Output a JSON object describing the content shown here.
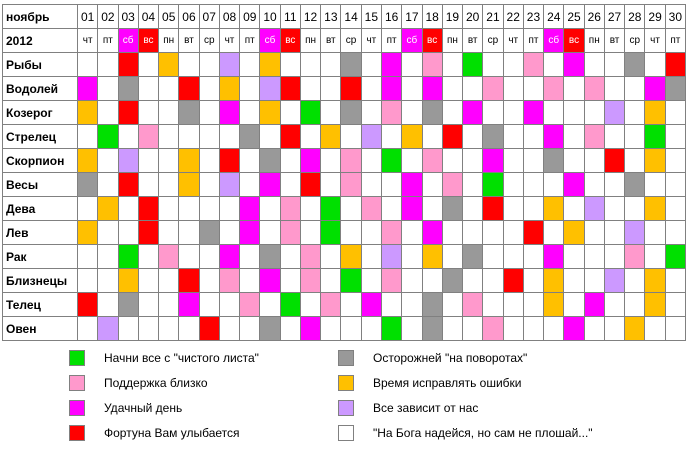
{
  "header": {
    "month": "ноябрь",
    "year": "2012",
    "days": [
      "01",
      "02",
      "03",
      "04",
      "05",
      "06",
      "07",
      "08",
      "09",
      "10",
      "11",
      "12",
      "13",
      "14",
      "15",
      "16",
      "17",
      "18",
      "19",
      "20",
      "21",
      "22",
      "23",
      "24",
      "25",
      "26",
      "27",
      "28",
      "29",
      "30"
    ],
    "weekdays": [
      "чт",
      "пт",
      "сб",
      "вс",
      "пн",
      "вт",
      "ср",
      "чт",
      "пт",
      "сб",
      "вс",
      "пн",
      "вт",
      "ср",
      "чт",
      "пт",
      "сб",
      "вс",
      "пн",
      "вт",
      "ср",
      "чт",
      "пт",
      "сб",
      "вс",
      "пн",
      "вт",
      "ср",
      "чт",
      "пт"
    ]
  },
  "colors": {
    "G": "#00e000",
    "P": "#ff99cc",
    "M": "#ff00ff",
    "R": "#ff0000",
    "D": "#999999",
    "Y": "#ffc000",
    "L": "#cc99ff",
    "W": "#ffffff",
    "sat": "#ff00ff",
    "sun": "#ff0000"
  },
  "signs": [
    {
      "name": "Рыбы",
      "cells": "WWRWYWWLWYWWWDWMWPWGWWPWMWWDWR"
    },
    {
      "name": "Водолей",
      "cells": "MWDWWRWYWLRWWRWMWMWWPWWPWPWWMD"
    },
    {
      "name": "Козерог",
      "cells": "YWRWWDWMWYWGWDWPWDWMWWMWWWLWYW"
    },
    {
      "name": "Стрелец",
      "cells": "WGWPWWWWDWRWYWLWYWRWDWWMWPWWGW"
    },
    {
      "name": "Скорпион",
      "cells": "YWLWWYWRWDWMWPWGWPWWMWWDWWRWYW"
    },
    {
      "name": "Весы",
      "cells": "DWRWWYWLWMWRWPWWMWPWGWWWMWWDWW"
    },
    {
      "name": "Дева",
      "cells": "WYWRWWWWMWPWGWPWMWDWRWWYWLWWYW"
    },
    {
      "name": "Лев",
      "cells": "YWWRWWDWMWPWGWWPWMWWWWRWYWWLWW"
    },
    {
      "name": "Рак",
      "cells": "WWGWPWWMWDWPWYWLWYWDWWWMWWWPWG"
    },
    {
      "name": "Близнецы",
      "cells": "WWYWWRWPWMWPWGWPWWDWWRWYWWLWYW"
    },
    {
      "name": "Телец",
      "cells": "RWDWWMWWPWGWPWMWWDWPWWWYWMWWYW"
    },
    {
      "name": "Овен",
      "cells": "WLWWWWRWWDWMWWWGWDWWPWWWMWWYWW"
    }
  ],
  "legend": [
    {
      "color": "G",
      "text": "Начни все с \"чистого листа\""
    },
    {
      "color": "P",
      "text": "Поддержка близко"
    },
    {
      "color": "M",
      "text": "Удачный день"
    },
    {
      "color": "R",
      "text": "Фортуна Вам улыбается"
    },
    {
      "color": "D",
      "text": "Осторожней \"на поворотах\""
    },
    {
      "color": "Y",
      "text": "Время исправлять ошибки"
    },
    {
      "color": "L",
      "text": "Все зависит от нас"
    },
    {
      "color": "W",
      "text": "\"На Бога надейся, но сам не плошай...\""
    }
  ]
}
